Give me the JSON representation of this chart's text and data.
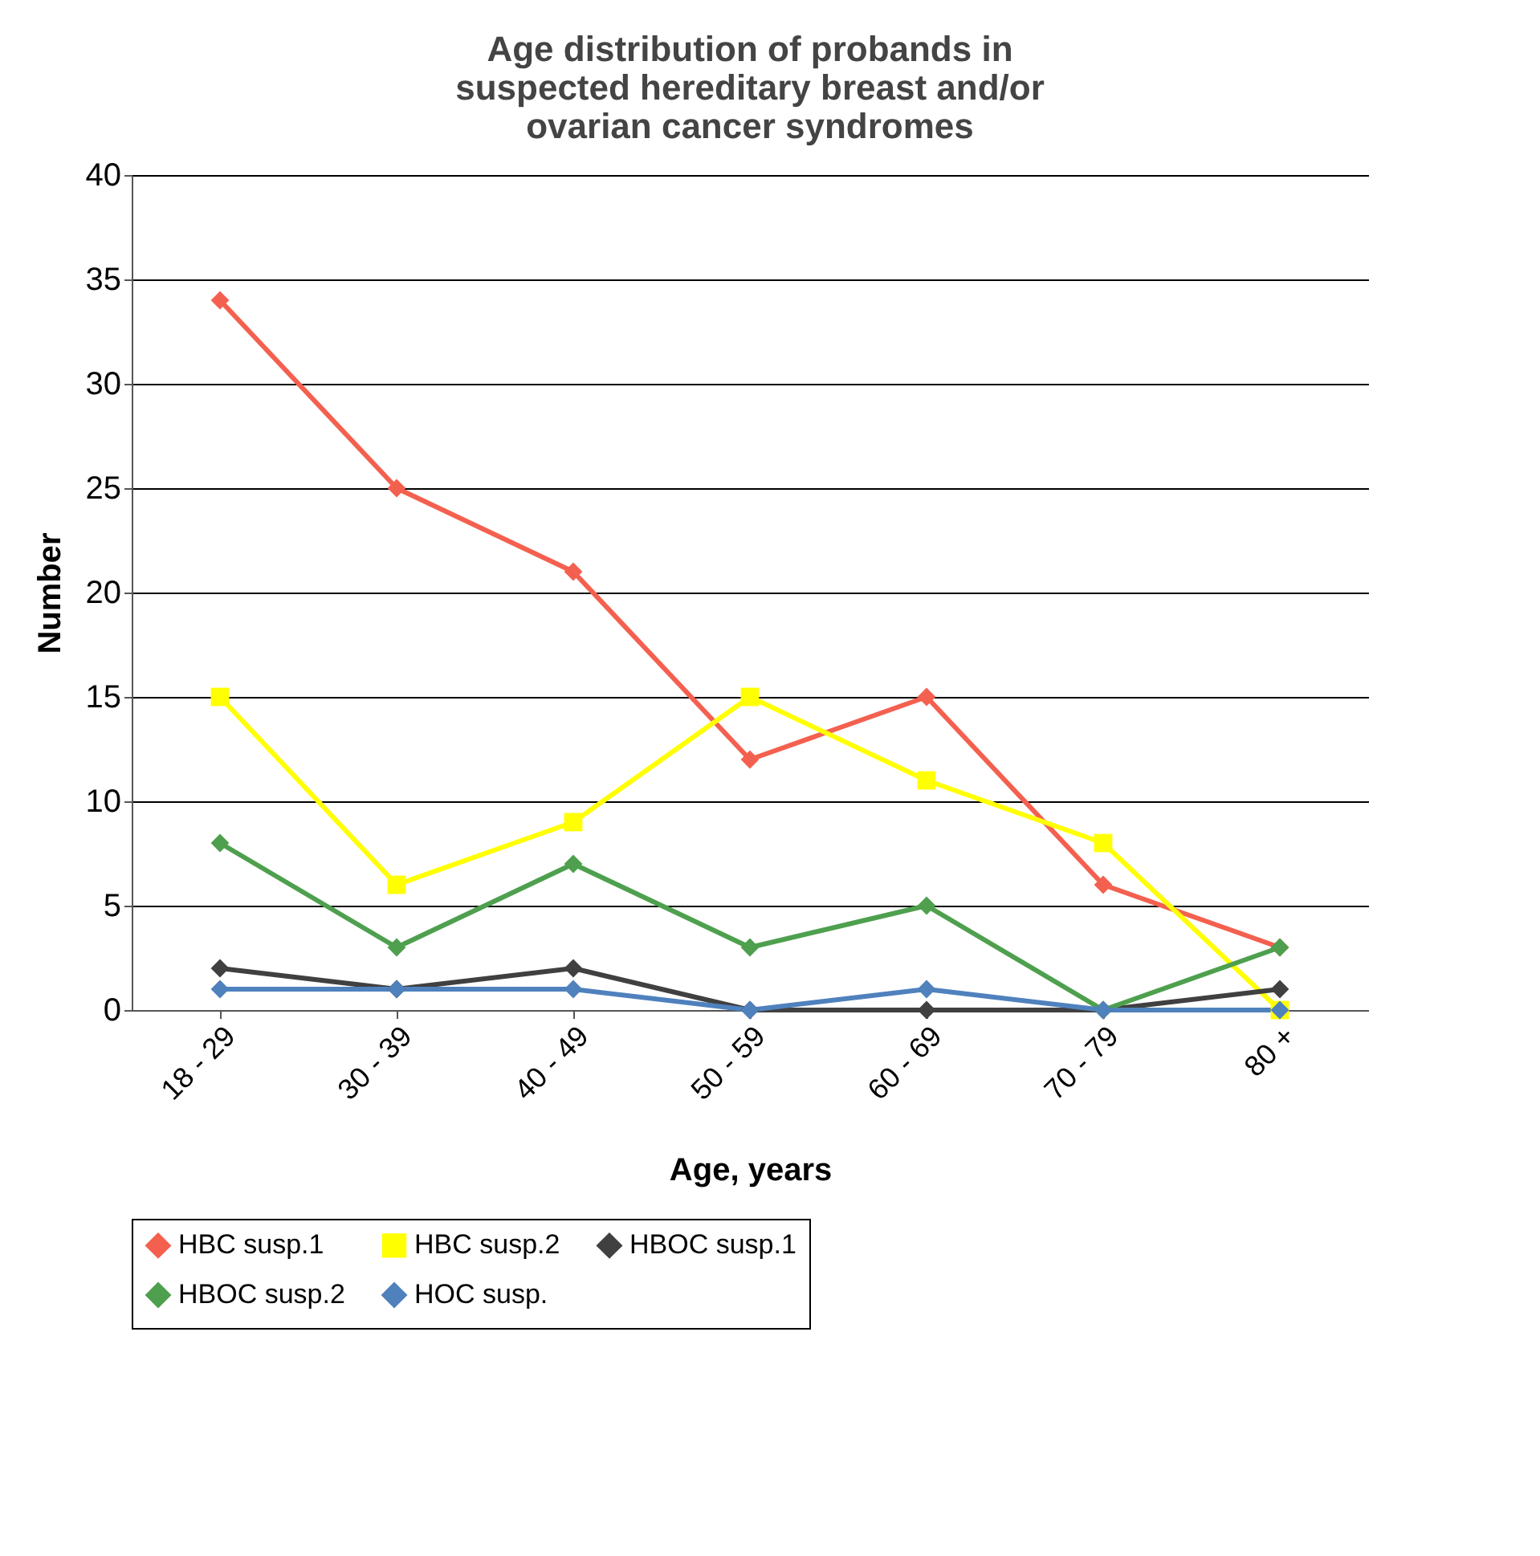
{
  "chart_data": {
    "type": "line",
    "title": "Age distribution of probands in suspected hereditary breast and/or ovarian cancer syndromes",
    "xlabel": "Age, years",
    "ylabel": "Number",
    "categories": [
      "18 - 29",
      "30 - 39",
      "40 - 49",
      "50 - 59",
      "60 - 69",
      "70 - 79",
      "80 +"
    ],
    "series": [
      {
        "name": "HBC susp.1",
        "color": "#f4604f",
        "marker": "diamond",
        "values": [
          34,
          25,
          21,
          12,
          15,
          6,
          3
        ]
      },
      {
        "name": "HBC susp.2",
        "color": "#ffff00",
        "marker": "square",
        "values": [
          15,
          6,
          9,
          15,
          11,
          8,
          0
        ]
      },
      {
        "name": "HBOC susp.1",
        "color": "#404040",
        "marker": "diamond",
        "values": [
          2,
          1,
          2,
          0,
          0,
          0,
          1
        ]
      },
      {
        "name": "HBOC susp.2",
        "color": "#4ea04e",
        "marker": "diamond",
        "values": [
          8,
          3,
          7,
          3,
          5,
          0,
          3
        ]
      },
      {
        "name": "HOC susp.",
        "color": "#4f81bd",
        "marker": "diamond",
        "values": [
          1,
          1,
          1,
          0,
          1,
          0,
          0
        ]
      }
    ],
    "ylim": [
      0,
      40
    ],
    "yticks": [
      0,
      5,
      10,
      15,
      20,
      25,
      30,
      35,
      40
    ],
    "grid": "y",
    "legend": "bottom"
  }
}
